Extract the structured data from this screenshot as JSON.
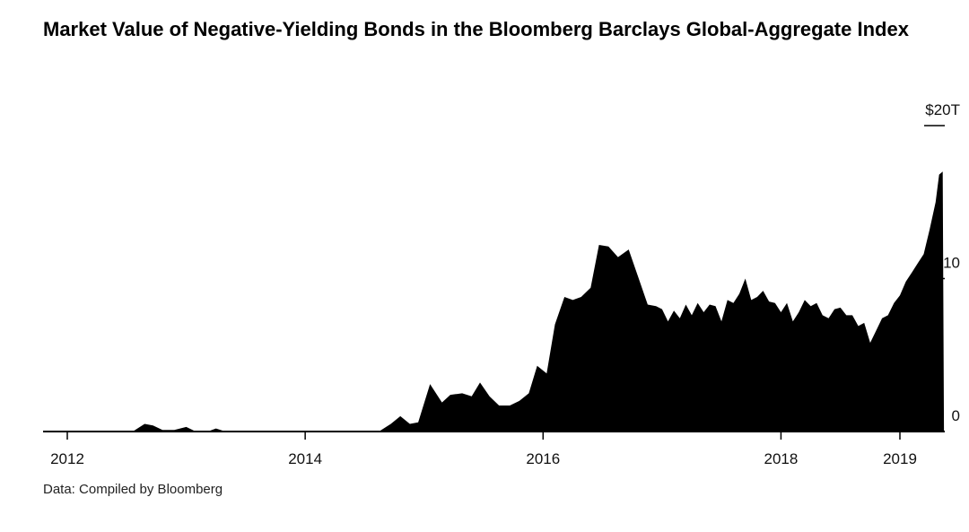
{
  "title": "Market Value of Negative-Yielding Bonds in the Bloomberg Barclays Global-Aggregate Index",
  "source": "Data: Compiled by Bloomberg",
  "colors": {
    "area": "#000000",
    "axis": "#000000",
    "background": "#ffffff"
  },
  "chart_data": {
    "type": "area",
    "ylim": [
      0,
      20
    ],
    "xlim": [
      2012.0,
      2019.45
    ],
    "x_ticks": [
      {
        "value": 2012,
        "label": "2012"
      },
      {
        "value": 2014,
        "label": "2014"
      },
      {
        "value": 2016,
        "label": "2016"
      },
      {
        "value": 2018,
        "label": "2018"
      },
      {
        "value": 2019,
        "label": "2019"
      }
    ],
    "y_ticks": [
      {
        "value": 0,
        "label": "0"
      },
      {
        "value": 10,
        "label": "10"
      },
      {
        "value": 20,
        "label": "$20T"
      }
    ],
    "y_axis_side": "right",
    "grid": false,
    "series": [
      {
        "values": [
          [
            2012.0,
            0.0
          ],
          [
            2012.4,
            0.0
          ],
          [
            2012.45,
            0.05
          ],
          [
            2012.55,
            0.0
          ],
          [
            2012.65,
            0.5
          ],
          [
            2012.72,
            0.4
          ],
          [
            2012.8,
            0.1
          ],
          [
            2012.9,
            0.1
          ],
          [
            2013.0,
            0.3
          ],
          [
            2013.08,
            0.0
          ],
          [
            2013.18,
            0.0
          ],
          [
            2013.25,
            0.2
          ],
          [
            2013.33,
            0.0
          ],
          [
            2013.5,
            0.0
          ],
          [
            2014.0,
            0.0
          ],
          [
            2014.5,
            0.0
          ],
          [
            2014.62,
            0.0
          ],
          [
            2014.72,
            0.5
          ],
          [
            2014.8,
            1.0
          ],
          [
            2014.88,
            0.5
          ],
          [
            2014.95,
            0.6
          ],
          [
            2015.05,
            3.1
          ],
          [
            2015.15,
            1.9
          ],
          [
            2015.22,
            2.4
          ],
          [
            2015.32,
            2.5
          ],
          [
            2015.4,
            2.3
          ],
          [
            2015.47,
            3.2
          ],
          [
            2015.55,
            2.3
          ],
          [
            2015.63,
            1.7
          ],
          [
            2015.72,
            1.7
          ],
          [
            2015.8,
            2.0
          ],
          [
            2015.88,
            2.5
          ],
          [
            2015.95,
            4.3
          ],
          [
            2016.03,
            3.8
          ],
          [
            2016.1,
            7.0
          ],
          [
            2016.18,
            8.8
          ],
          [
            2016.25,
            8.6
          ],
          [
            2016.32,
            8.8
          ],
          [
            2016.4,
            9.4
          ],
          [
            2016.47,
            12.2
          ],
          [
            2016.55,
            12.1
          ],
          [
            2016.63,
            11.4
          ],
          [
            2016.72,
            11.9
          ],
          [
            2016.8,
            10.1
          ],
          [
            2016.88,
            8.3
          ],
          [
            2016.95,
            8.2
          ],
          [
            2017.0,
            8.0
          ],
          [
            2017.05,
            7.2
          ],
          [
            2017.1,
            7.9
          ],
          [
            2017.15,
            7.4
          ],
          [
            2017.2,
            8.3
          ],
          [
            2017.25,
            7.6
          ],
          [
            2017.3,
            8.4
          ],
          [
            2017.35,
            7.8
          ],
          [
            2017.4,
            8.3
          ],
          [
            2017.45,
            8.2
          ],
          [
            2017.5,
            7.2
          ],
          [
            2017.55,
            8.6
          ],
          [
            2017.6,
            8.4
          ],
          [
            2017.65,
            9.0
          ],
          [
            2017.7,
            10.0
          ],
          [
            2017.75,
            8.6
          ],
          [
            2017.8,
            8.8
          ],
          [
            2017.85,
            9.2
          ],
          [
            2017.9,
            8.5
          ],
          [
            2017.95,
            8.4
          ],
          [
            2018.0,
            7.8
          ],
          [
            2018.05,
            8.4
          ],
          [
            2018.1,
            7.2
          ],
          [
            2018.15,
            7.8
          ],
          [
            2018.2,
            8.6
          ],
          [
            2018.25,
            8.2
          ],
          [
            2018.3,
            8.4
          ],
          [
            2018.35,
            7.6
          ],
          [
            2018.4,
            7.4
          ],
          [
            2018.45,
            8.0
          ],
          [
            2018.5,
            8.1
          ],
          [
            2018.55,
            7.6
          ],
          [
            2018.6,
            7.6
          ],
          [
            2018.65,
            6.9
          ],
          [
            2018.7,
            7.1
          ],
          [
            2018.75,
            5.8
          ],
          [
            2018.8,
            6.6
          ],
          [
            2018.85,
            7.4
          ],
          [
            2018.9,
            7.6
          ],
          [
            2018.95,
            8.4
          ],
          [
            2019.0,
            8.9
          ],
          [
            2019.05,
            9.8
          ],
          [
            2019.1,
            10.4
          ],
          [
            2019.15,
            11.0
          ],
          [
            2019.2,
            11.6
          ],
          [
            2019.25,
            13.2
          ],
          [
            2019.3,
            15.0
          ],
          [
            2019.33,
            16.8
          ],
          [
            2019.36,
            17.0
          ],
          [
            2019.37,
            0.0
          ]
        ]
      }
    ]
  }
}
